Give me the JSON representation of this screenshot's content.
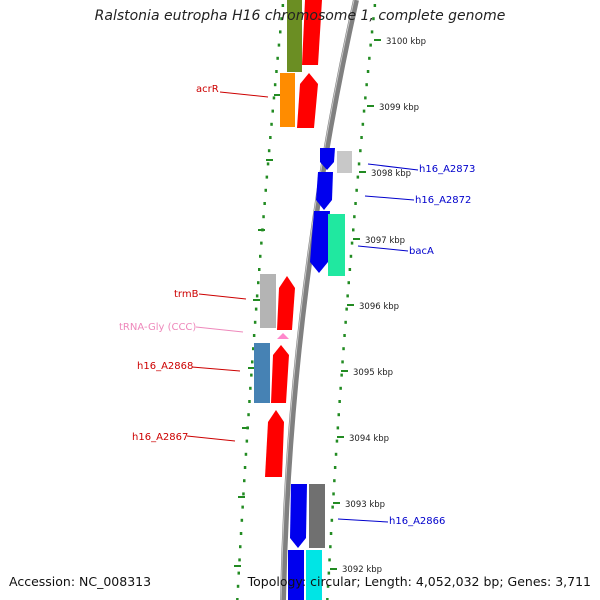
{
  "title": "Ralstonia eutropha H16 chromosome 1, complete genome",
  "footer": {
    "accession": "Accession: NC_008313",
    "info": "Topology: circular; Length: 4,052,032 bp; Genes: 3,711"
  },
  "kbp_labels": [
    "3100 kbp",
    "3099 kbp",
    "3098 kbp",
    "3097 kbp",
    "3096 kbp",
    "3095 kbp",
    "3094 kbp",
    "3093 kbp",
    "3092 kbp"
  ],
  "gene_labels": [
    {
      "text": "acrR",
      "color": "#cc0000"
    },
    {
      "text": "h16_A2873",
      "color": "#0000cc"
    },
    {
      "text": "h16_A2872",
      "color": "#0000cc"
    },
    {
      "text": "bacA",
      "color": "#0000cc"
    },
    {
      "text": "trmB",
      "color": "#cc0000"
    },
    {
      "text": "tRNA-Gly (CCC)",
      "color": "#ee88bb"
    },
    {
      "text": "h16_A2868",
      "color": "#cc0000"
    },
    {
      "text": "h16_A2867",
      "color": "#cc0000"
    },
    {
      "text": "h16_A2866",
      "color": "#0000cc"
    }
  ],
  "colors": {
    "backbone": "#808080",
    "tick": "#228b22",
    "forward_cds": "#ff0000",
    "reverse_cds": "#0000ee",
    "olive": "#6b8e23",
    "orange": "#ff8c00",
    "gray": "#b4b4b4",
    "dark_gray": "#707070",
    "teal": "#20e8a0",
    "steel_blue": "#4682b4",
    "cyan": "#00e5e5",
    "pink": "#ff88cc"
  }
}
